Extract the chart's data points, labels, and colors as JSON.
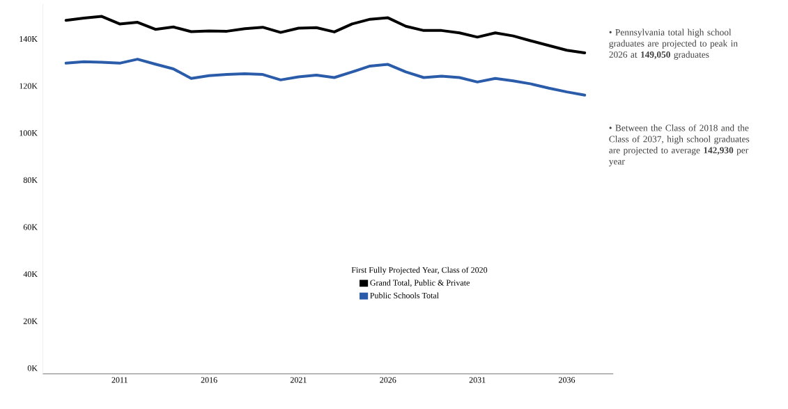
{
  "chart_data": {
    "type": "line",
    "x": [
      2008,
      2009,
      2010,
      2011,
      2012,
      2013,
      2014,
      2015,
      2016,
      2017,
      2018,
      2019,
      2020,
      2021,
      2022,
      2023,
      2024,
      2025,
      2026,
      2027,
      2028,
      2029,
      2030,
      2031,
      2032,
      2033,
      2034,
      2035,
      2036,
      2037
    ],
    "series": [
      {
        "name": "Grand Total, Public & Private",
        "color": "#000000",
        "values": [
          147900,
          148900,
          149600,
          146400,
          147100,
          144100,
          145100,
          143100,
          143400,
          143300,
          144400,
          145000,
          142800,
          144600,
          144800,
          143000,
          146400,
          148400,
          149000,
          145400,
          143600,
          143600,
          142600,
          140800,
          142600,
          141300,
          139200,
          137200,
          135200,
          134100
        ]
      },
      {
        "name": "Public Schools Total",
        "color": "#2a5caa",
        "values": [
          129700,
          130300,
          130100,
          129700,
          131400,
          129300,
          127300,
          123200,
          124400,
          124900,
          125200,
          124900,
          122600,
          123900,
          124600,
          123600,
          126000,
          128500,
          129200,
          126000,
          123600,
          124200,
          123600,
          121700,
          123200,
          122200,
          120900,
          119100,
          117500,
          116100
        ]
      }
    ],
    "legend_title": "First Fully Projected Year, Class of 2020",
    "legend": "bottom",
    "xlim": [
      2006.7,
      2038.6
    ],
    "xticks": [
      2011,
      2016,
      2021,
      2026,
      2031,
      2036
    ],
    "ylim": [
      -2400,
      155000
    ],
    "yticks": [
      {
        "value": 0,
        "label": "0K"
      },
      {
        "value": 20000,
        "label": "20K"
      },
      {
        "value": 40000,
        "label": "40K"
      },
      {
        "value": 60000,
        "label": "60K"
      },
      {
        "value": 80000,
        "label": "80K"
      },
      {
        "value": 100000,
        "label": "100K"
      },
      {
        "value": 120000,
        "label": "120K"
      },
      {
        "value": 140000,
        "label": "140K"
      }
    ],
    "grid": false,
    "line_style": "solid",
    "annotations": [
      "• Pennsylvania total high school graduates are projected to peak in 2026 at **149,050** graduates",
      "• Between the Class of 2018 and the Class of 2037, high school graduates are projected to average **142,930** per year"
    ]
  }
}
